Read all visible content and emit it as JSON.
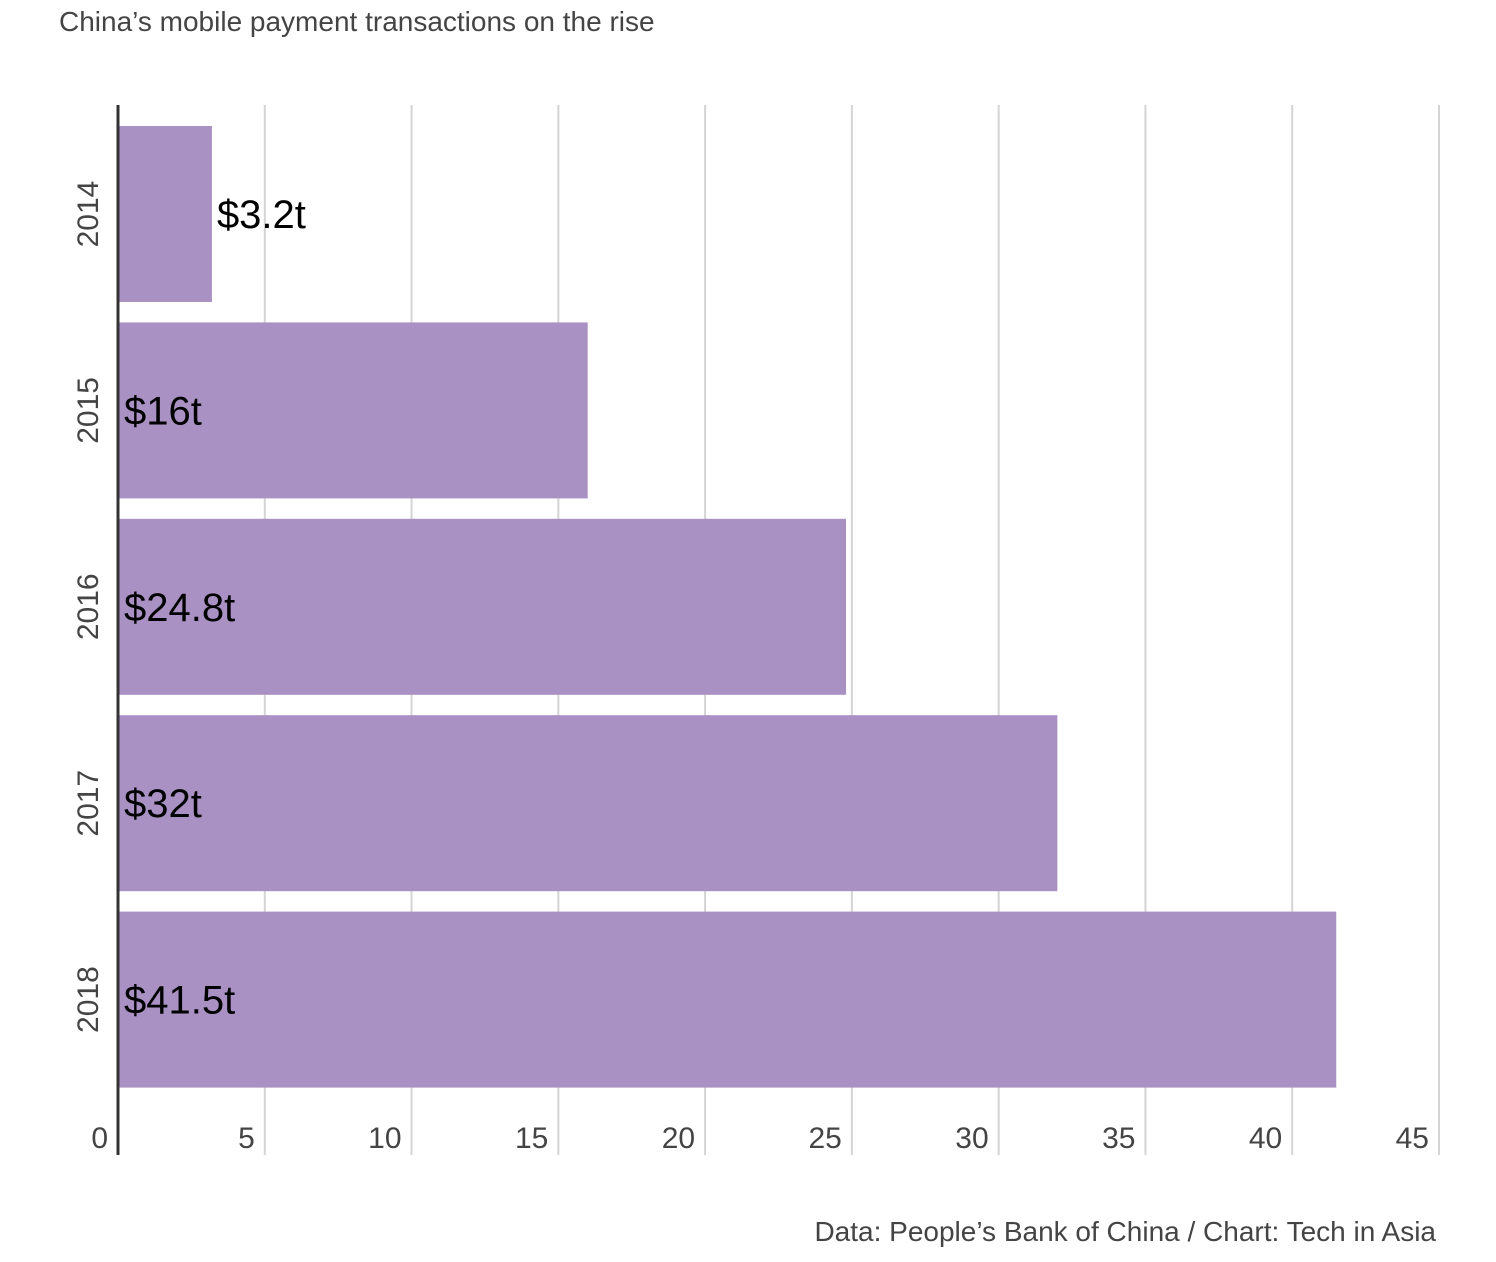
{
  "chart_data": {
    "type": "bar",
    "orientation": "horizontal",
    "title": "China’s mobile payment transactions on the rise",
    "categories": [
      "2014",
      "2015",
      "2016",
      "2017",
      "2018"
    ],
    "values": [
      3.2,
      16,
      24.8,
      32,
      41.5
    ],
    "data_labels": [
      "$3.2t",
      "$16t",
      "$24.8t",
      "$32t",
      "$41.5t"
    ],
    "xlim": [
      0,
      45
    ],
    "x_ticks": [
      0,
      5,
      10,
      15,
      20,
      25,
      30,
      35,
      40,
      45
    ],
    "x_tick_labels": [
      "0",
      "5",
      "10",
      "15",
      "20",
      "25",
      "30",
      "35",
      "40",
      "45"
    ],
    "xlabel": "",
    "ylabel": "",
    "grid": true,
    "bar_color": "#aa91c4",
    "source": "Data: People’s Bank of China / Chart: Tech in Asia"
  }
}
